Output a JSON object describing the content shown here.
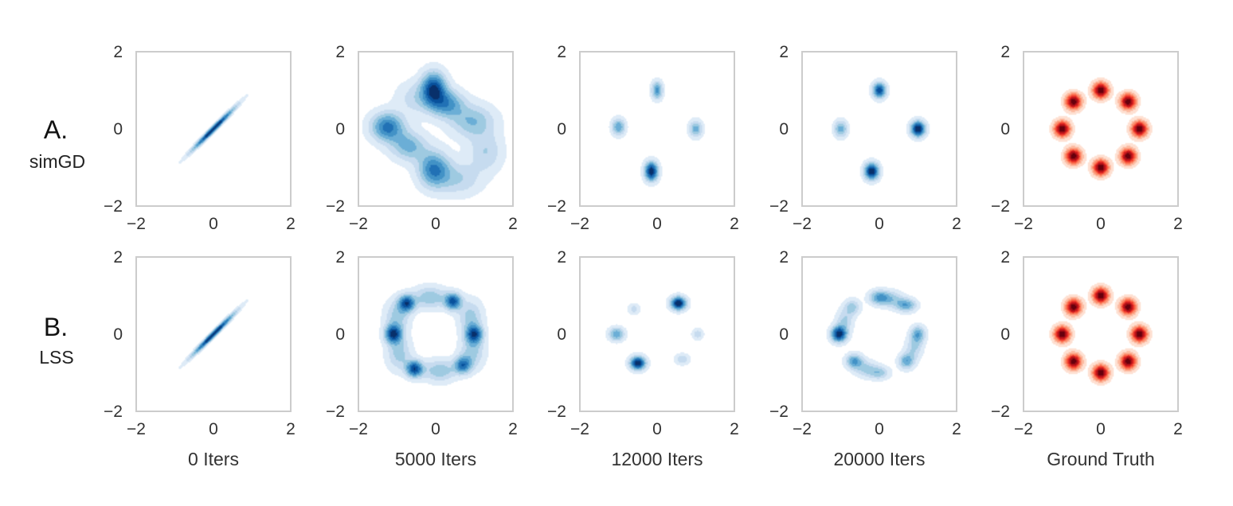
{
  "chart_data": {
    "type": "heatmap",
    "description_of_panels": "kde density contours",
    "xlim": [
      -2,
      2
    ],
    "ylim": [
      -2,
      2
    ],
    "tick_values": [
      -2,
      0,
      2
    ],
    "tick_labels": [
      "−2",
      "0",
      "2"
    ],
    "rows": [
      {
        "letter": "A.",
        "name": "simGD"
      },
      {
        "letter": "B.",
        "name": "LSS"
      }
    ],
    "columns": [
      "0 Iters",
      "5000 Iters",
      "12000 Iters",
      "20000 Iters",
      "Ground Truth"
    ],
    "colormaps": {
      "Blues": [
        "#deebf7",
        "#c6dbef",
        "#9ecae1",
        "#6baed6",
        "#4292c6",
        "#2171b5",
        "#08519c",
        "#08306b"
      ],
      "Reds": [
        "#fee0d2",
        "#fcbba1",
        "#fc9272",
        "#fb6a4a",
        "#ef3b2c",
        "#cb181d",
        "#a50f15",
        "#67000d"
      ]
    },
    "panels": [
      [
        {
          "cmap": "Blues",
          "components": [
            {
              "x": 0.0,
              "y": 0.0,
              "sx": 0.38,
              "sy": 0.38,
              "rho": 0.985,
              "w": 1.0
            }
          ]
        },
        {
          "cmap": "Blues",
          "components": [
            {
              "x": -0.05,
              "y": 1.05,
              "sx": 0.22,
              "sy": 0.3,
              "rho": 0,
              "w": 1.0
            },
            {
              "x": 0.3,
              "y": 0.65,
              "sx": 0.3,
              "sy": 0.25,
              "rho": 0,
              "w": 0.65
            },
            {
              "x": 0.95,
              "y": 0.2,
              "sx": 0.4,
              "sy": 0.3,
              "rho": 0,
              "w": 0.5
            },
            {
              "x": -1.25,
              "y": 0.05,
              "sx": 0.3,
              "sy": 0.26,
              "rho": 0,
              "w": 0.85
            },
            {
              "x": -0.7,
              "y": -0.45,
              "sx": 0.32,
              "sy": 0.26,
              "rho": 0,
              "w": 0.55
            },
            {
              "x": -0.05,
              "y": -1.05,
              "sx": 0.28,
              "sy": 0.32,
              "rho": 0,
              "w": 0.8
            },
            {
              "x": 0.6,
              "y": -1.3,
              "sx": 0.4,
              "sy": 0.3,
              "rho": 0,
              "w": 0.35
            },
            {
              "x": 1.3,
              "y": -0.6,
              "sx": 0.3,
              "sy": 0.35,
              "rho": 0,
              "w": 0.35
            },
            {
              "x": -0.5,
              "y": 0.8,
              "sx": 0.35,
              "sy": 0.3,
              "rho": 0,
              "w": 0.3
            }
          ]
        },
        {
          "cmap": "Blues",
          "components": [
            {
              "x": 0.0,
              "y": 1.0,
              "sx": 0.1,
              "sy": 0.16,
              "rho": 0,
              "w": 0.55
            },
            {
              "x": -1.0,
              "y": 0.05,
              "sx": 0.12,
              "sy": 0.15,
              "rho": 0,
              "w": 0.5
            },
            {
              "x": 1.0,
              "y": 0.0,
              "sx": 0.12,
              "sy": 0.15,
              "rho": 0,
              "w": 0.45
            },
            {
              "x": -0.15,
              "y": -1.1,
              "sx": 0.12,
              "sy": 0.17,
              "rho": 0,
              "w": 0.95
            }
          ]
        },
        {
          "cmap": "Blues",
          "components": [
            {
              "x": 0.0,
              "y": 1.0,
              "sx": 0.12,
              "sy": 0.14,
              "rho": 0,
              "w": 0.8
            },
            {
              "x": -1.0,
              "y": 0.0,
              "sx": 0.12,
              "sy": 0.15,
              "rho": 0,
              "w": 0.45
            },
            {
              "x": 1.0,
              "y": 0.0,
              "sx": 0.13,
              "sy": 0.14,
              "rho": 0,
              "w": 0.95
            },
            {
              "x": -0.2,
              "y": -1.1,
              "sx": 0.13,
              "sy": 0.15,
              "rho": 0,
              "w": 0.95
            }
          ]
        },
        {
          "cmap": "Reds",
          "components": [
            {
              "x": 1.0,
              "y": 0.0,
              "sx": 0.14,
              "sy": 0.14,
              "rho": 0,
              "w": 1.0
            },
            {
              "x": 0.707,
              "y": 0.707,
              "sx": 0.14,
              "sy": 0.14,
              "rho": 0,
              "w": 1.0
            },
            {
              "x": 0.0,
              "y": 1.0,
              "sx": 0.14,
              "sy": 0.14,
              "rho": 0,
              "w": 1.0
            },
            {
              "x": -0.707,
              "y": 0.707,
              "sx": 0.14,
              "sy": 0.14,
              "rho": 0,
              "w": 1.0
            },
            {
              "x": -1.0,
              "y": 0.0,
              "sx": 0.14,
              "sy": 0.14,
              "rho": 0,
              "w": 1.0
            },
            {
              "x": -0.707,
              "y": -0.707,
              "sx": 0.14,
              "sy": 0.14,
              "rho": 0,
              "w": 1.0
            },
            {
              "x": 0.0,
              "y": -1.0,
              "sx": 0.14,
              "sy": 0.14,
              "rho": 0,
              "w": 1.0
            },
            {
              "x": 0.707,
              "y": -0.707,
              "sx": 0.14,
              "sy": 0.14,
              "rho": 0,
              "w": 1.0
            }
          ]
        }
      ],
      [
        {
          "cmap": "Blues",
          "components": [
            {
              "x": 0.0,
              "y": 0.0,
              "sx": 0.38,
              "sy": 0.38,
              "rho": 0.985,
              "w": 1.0
            }
          ]
        },
        {
          "cmap": "Blues",
          "components": [
            {
              "x": -0.75,
              "y": 0.8,
              "sx": 0.15,
              "sy": 0.15,
              "rho": 0,
              "w": 0.9
            },
            {
              "x": 0.45,
              "y": 0.85,
              "sx": 0.15,
              "sy": 0.15,
              "rho": 0,
              "w": 0.9
            },
            {
              "x": 1.0,
              "y": 0.0,
              "sx": 0.15,
              "sy": 0.16,
              "rho": 0,
              "w": 0.85
            },
            {
              "x": 0.7,
              "y": -0.8,
              "sx": 0.15,
              "sy": 0.15,
              "rho": 0,
              "w": 0.75
            },
            {
              "x": -0.55,
              "y": -0.9,
              "sx": 0.15,
              "sy": 0.15,
              "rho": 0,
              "w": 0.95
            },
            {
              "x": -1.1,
              "y": 0.0,
              "sx": 0.15,
              "sy": 0.16,
              "rho": 0,
              "w": 0.95
            },
            {
              "x": -0.15,
              "y": 0.95,
              "sx": 0.3,
              "sy": 0.2,
              "rho": 0,
              "w": 0.45
            },
            {
              "x": 0.9,
              "y": 0.45,
              "sx": 0.22,
              "sy": 0.3,
              "rho": 0,
              "w": 0.4
            },
            {
              "x": 0.1,
              "y": -0.95,
              "sx": 0.3,
              "sy": 0.2,
              "rho": 0,
              "w": 0.45
            },
            {
              "x": -0.95,
              "y": -0.5,
              "sx": 0.22,
              "sy": 0.3,
              "rho": 0,
              "w": 0.4
            },
            {
              "x": -1.0,
              "y": 0.45,
              "sx": 0.22,
              "sy": 0.3,
              "rho": 0,
              "w": 0.4
            },
            {
              "x": 0.95,
              "y": -0.45,
              "sx": 0.22,
              "sy": 0.3,
              "rho": 0,
              "w": 0.4
            }
          ]
        },
        {
          "cmap": "Blues",
          "components": [
            {
              "x": 0.55,
              "y": 0.8,
              "sx": 0.14,
              "sy": 0.12,
              "rho": 0,
              "w": 0.95
            },
            {
              "x": -0.5,
              "y": -0.75,
              "sx": 0.14,
              "sy": 0.12,
              "rho": 0,
              "w": 0.95
            },
            {
              "x": -1.05,
              "y": 0.0,
              "sx": 0.14,
              "sy": 0.12,
              "rho": 0,
              "w": 0.5
            },
            {
              "x": -0.6,
              "y": 0.65,
              "sx": 0.1,
              "sy": 0.1,
              "rho": 0,
              "w": 0.22
            },
            {
              "x": 0.65,
              "y": -0.65,
              "sx": 0.13,
              "sy": 0.1,
              "rho": 0,
              "w": 0.25
            },
            {
              "x": 1.05,
              "y": 0.0,
              "sx": 0.1,
              "sy": 0.1,
              "rho": 0,
              "w": 0.25
            }
          ]
        },
        {
          "cmap": "Blues",
          "components": [
            {
              "x": -1.05,
              "y": 0.0,
              "sx": 0.14,
              "sy": 0.14,
              "rho": 0,
              "w": 0.95
            },
            {
              "x": 0.0,
              "y": 0.95,
              "sx": 0.18,
              "sy": 0.13,
              "rho": 0,
              "w": 0.55
            },
            {
              "x": 0.7,
              "y": 0.75,
              "sx": 0.18,
              "sy": 0.12,
              "rho": 0,
              "w": 0.5
            },
            {
              "x": 1.0,
              "y": 0.0,
              "sx": 0.13,
              "sy": 0.15,
              "rho": 0,
              "w": 0.5
            },
            {
              "x": 0.7,
              "y": -0.7,
              "sx": 0.14,
              "sy": 0.14,
              "rho": 0,
              "w": 0.5
            },
            {
              "x": 0.0,
              "y": -1.0,
              "sx": 0.18,
              "sy": 0.12,
              "rho": 0,
              "w": 0.35
            },
            {
              "x": -0.65,
              "y": -0.7,
              "sx": 0.15,
              "sy": 0.13,
              "rho": 0,
              "w": 0.55
            },
            {
              "x": -0.7,
              "y": 0.7,
              "sx": 0.14,
              "sy": 0.14,
              "rho": 0,
              "w": 0.35
            },
            {
              "x": 0.35,
              "y": 0.9,
              "sx": 0.2,
              "sy": 0.15,
              "rho": 0,
              "w": 0.3
            },
            {
              "x": -0.35,
              "y": -0.9,
              "sx": 0.2,
              "sy": 0.15,
              "rho": 0,
              "w": 0.3
            },
            {
              "x": 0.9,
              "y": -0.35,
              "sx": 0.15,
              "sy": 0.2,
              "rho": 0,
              "w": 0.3
            },
            {
              "x": -0.9,
              "y": 0.35,
              "sx": 0.15,
              "sy": 0.2,
              "rho": 0,
              "w": 0.3
            }
          ]
        },
        {
          "cmap": "Reds",
          "components": [
            {
              "x": 1.0,
              "y": 0.0,
              "sx": 0.14,
              "sy": 0.14,
              "rho": 0,
              "w": 1.0
            },
            {
              "x": 0.707,
              "y": 0.707,
              "sx": 0.14,
              "sy": 0.14,
              "rho": 0,
              "w": 1.0
            },
            {
              "x": 0.0,
              "y": 1.0,
              "sx": 0.14,
              "sy": 0.14,
              "rho": 0,
              "w": 1.0
            },
            {
              "x": -0.707,
              "y": 0.707,
              "sx": 0.14,
              "sy": 0.14,
              "rho": 0,
              "w": 1.0
            },
            {
              "x": -1.0,
              "y": 0.0,
              "sx": 0.14,
              "sy": 0.14,
              "rho": 0,
              "w": 1.0
            },
            {
              "x": -0.707,
              "y": -0.707,
              "sx": 0.14,
              "sy": 0.14,
              "rho": 0,
              "w": 1.0
            },
            {
              "x": 0.0,
              "y": -1.0,
              "sx": 0.14,
              "sy": 0.14,
              "rho": 0,
              "w": 1.0
            },
            {
              "x": 0.707,
              "y": -0.707,
              "sx": 0.14,
              "sy": 0.14,
              "rho": 0,
              "w": 1.0
            }
          ]
        }
      ]
    ],
    "axis_color": "#cccccc",
    "grid": false,
    "legend": "none"
  }
}
